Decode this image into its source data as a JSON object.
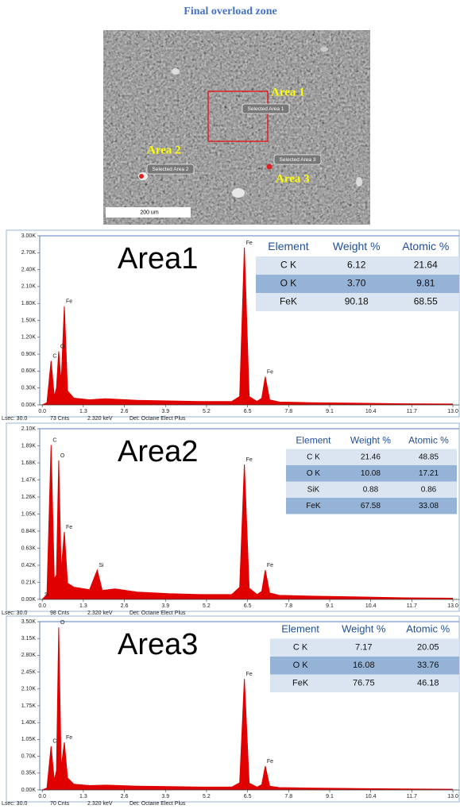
{
  "title": "Final overload zone",
  "image": {
    "area_labels": [
      "Area 1",
      "Area 2",
      "Area 3"
    ],
    "tags": [
      "Selected Area 1",
      "Selected Area 2",
      "Selected Area 3"
    ],
    "scale_bar": "200 um"
  },
  "chart_data": [
    {
      "type": "area",
      "title": "Area1",
      "color": "#e00000",
      "x": [
        0,
        0.15,
        0.28,
        0.38,
        0.45,
        0.52,
        0.6,
        0.7,
        0.8,
        1.0,
        1.5,
        2.0,
        3.0,
        4.0,
        5.0,
        6.0,
        6.25,
        6.4,
        6.55,
        6.8,
        6.95,
        7.06,
        7.2,
        7.5,
        8.5,
        10,
        11.5,
        13.0
      ],
      "values": [
        0,
        40,
        780,
        150,
        300,
        950,
        400,
        1750,
        250,
        120,
        90,
        110,
        80,
        70,
        60,
        60,
        150,
        2790,
        150,
        60,
        120,
        500,
        90,
        50,
        40,
        30,
        20,
        15
      ],
      "xlim": [
        -0.08,
        13.2
      ],
      "ylim": [
        0,
        3000
      ],
      "xticks": [
        {
          "value": 0,
          "label": "0.0"
        },
        1.3,
        2.6,
        3.9,
        5.2,
        6.5,
        7.8,
        9.1,
        10.4,
        11.7,
        {
          "value": 13,
          "label": "13.0"
        }
      ],
      "yticks": [
        {
          "value": 0,
          "label": "0.00K"
        },
        {
          "value": 300,
          "label": "0.30K"
        },
        {
          "value": 600,
          "label": "0.60K"
        },
        {
          "value": 900,
          "label": "0.90K"
        },
        {
          "value": 1200,
          "label": "1.20K"
        },
        {
          "value": 1500,
          "label": "1.50K"
        },
        {
          "value": 1800,
          "label": "1.80K"
        },
        {
          "value": 2100,
          "label": "2.10K"
        },
        {
          "value": 2400,
          "label": "2.40K"
        },
        {
          "value": 2700,
          "label": "2.70K"
        },
        {
          "value": 3000,
          "label": "3.00K"
        }
      ],
      "peaks": [
        {
          "label": "C",
          "x": 0.28
        },
        {
          "label": "O",
          "x": 0.52
        },
        {
          "label": "Fe",
          "x": 0.7
        },
        {
          "label": "Fe",
          "x": 6.4
        },
        {
          "label": "Fe",
          "x": 7.06
        }
      ],
      "table": {
        "columns": [
          "Element",
          "Weight %",
          "Atomic %"
        ],
        "rows": [
          [
            "C K",
            "6.12",
            "21.64"
          ],
          [
            "O K",
            "3.70",
            "9.81"
          ],
          [
            "FeK",
            "90.18",
            "68.55"
          ]
        ]
      },
      "footer": [
        "Lsec: 30.0",
        "73 Cnts",
        "2.320 keV",
        "Det: Octane Elect Plus"
      ]
    },
    {
      "type": "area",
      "title": "Area2",
      "color": "#e00000",
      "x": [
        0,
        0.15,
        0.28,
        0.38,
        0.45,
        0.52,
        0.6,
        0.7,
        0.8,
        1.0,
        1.5,
        1.74,
        1.9,
        2.3,
        3.0,
        4.0,
        5.0,
        6.0,
        6.25,
        6.4,
        6.55,
        6.8,
        6.95,
        7.06,
        7.2,
        7.5,
        8.5,
        10,
        11.5,
        13.0
      ],
      "values": [
        0,
        60,
        1900,
        250,
        300,
        1710,
        350,
        830,
        200,
        150,
        120,
        360,
        110,
        130,
        90,
        70,
        60,
        60,
        150,
        1660,
        140,
        60,
        100,
        360,
        80,
        50,
        40,
        30,
        20,
        15
      ],
      "xlim": [
        -0.08,
        13.2
      ],
      "ylim": [
        0,
        2100
      ],
      "xticks": [
        {
          "value": 0,
          "label": "0.0"
        },
        1.3,
        2.6,
        3.9,
        5.2,
        6.5,
        7.8,
        9.1,
        10.4,
        11.7,
        {
          "value": 13,
          "label": "13.0"
        }
      ],
      "yticks": [
        {
          "value": 0,
          "label": "0.00K"
        },
        {
          "value": 210,
          "label": "0.21K"
        },
        {
          "value": 420,
          "label": "0.42K"
        },
        {
          "value": 630,
          "label": "0.63K"
        },
        {
          "value": 840,
          "label": "0.84K"
        },
        {
          "value": 1050,
          "label": "1.05K"
        },
        {
          "value": 1260,
          "label": "1.26K"
        },
        {
          "value": 1470,
          "label": "1.47K"
        },
        {
          "value": 1680,
          "label": "1.68K"
        },
        {
          "value": 1890,
          "label": "1.89K"
        },
        {
          "value": 2100,
          "label": "2.10K"
        }
      ],
      "peaks": [
        {
          "label": "Si",
          "x": 0.02
        },
        {
          "label": "C",
          "x": 0.28
        },
        {
          "label": "O",
          "x": 0.52
        },
        {
          "label": "Fe",
          "x": 0.7
        },
        {
          "label": "Si",
          "x": 1.74
        },
        {
          "label": "Fe",
          "x": 6.4
        },
        {
          "label": "Fe",
          "x": 7.06
        }
      ],
      "table": {
        "columns": [
          "Element",
          "Weight %",
          "Atomic %"
        ],
        "rows": [
          [
            "C K",
            "21.46",
            "48.85"
          ],
          [
            "O K",
            "10.08",
            "17.21"
          ],
          [
            "SiK",
            "0.88",
            "0.86"
          ],
          [
            "FeK",
            "67.58",
            "33.08"
          ]
        ]
      },
      "footer": [
        "Lsec: 30.0",
        "98 Cnts",
        "2.320 keV",
        "Det: Octane Elect Plus"
      ]
    },
    {
      "type": "area",
      "title": "Area3",
      "color": "#e00000",
      "x": [
        0,
        0.15,
        0.28,
        0.38,
        0.45,
        0.52,
        0.6,
        0.7,
        0.8,
        1.0,
        1.5,
        2.0,
        3.0,
        4.0,
        5.0,
        6.0,
        6.25,
        6.4,
        6.55,
        6.8,
        6.95,
        7.06,
        7.2,
        7.5,
        8.5,
        10,
        11.5,
        13.0
      ],
      "values": [
        0,
        40,
        910,
        200,
        400,
        3380,
        450,
        990,
        250,
        120,
        90,
        100,
        80,
        70,
        60,
        60,
        150,
        2310,
        140,
        60,
        110,
        495,
        80,
        50,
        40,
        30,
        20,
        15
      ],
      "xlim": [
        -0.08,
        13.2
      ],
      "ylim": [
        0,
        3500
      ],
      "xticks": [
        {
          "value": 0,
          "label": "0.0"
        },
        1.3,
        2.6,
        3.9,
        5.2,
        6.5,
        7.8,
        9.1,
        10.4,
        11.7,
        {
          "value": 13,
          "label": "13.0"
        }
      ],
      "yticks": [
        {
          "value": 0,
          "label": "0.00K"
        },
        {
          "value": 350,
          "label": "0.35K"
        },
        {
          "value": 700,
          "label": "0.70K"
        },
        {
          "value": 1050,
          "label": "1.05K"
        },
        {
          "value": 1400,
          "label": "1.40K"
        },
        {
          "value": 1750,
          "label": "1.75K"
        },
        {
          "value": 2100,
          "label": "2.10K"
        },
        {
          "value": 2450,
          "label": "2.45K"
        },
        {
          "value": 2800,
          "label": "2.80K"
        },
        {
          "value": 3150,
          "label": "3.15K"
        },
        {
          "value": 3500,
          "label": "3.50K"
        }
      ],
      "peaks": [
        {
          "label": "C",
          "x": 0.28
        },
        {
          "label": "O",
          "x": 0.52
        },
        {
          "label": "Fe",
          "x": 0.7
        },
        {
          "label": "Fe",
          "x": 6.4
        },
        {
          "label": "Fe",
          "x": 7.06
        }
      ],
      "table": {
        "columns": [
          "Element",
          "Weight %",
          "Atomic %"
        ],
        "rows": [
          [
            "C K",
            "7.17",
            "20.05"
          ],
          [
            "O K",
            "16.08",
            "33.76"
          ],
          [
            "FeK",
            "76.75",
            "46.18"
          ]
        ]
      },
      "footer": [
        "Lsec: 30.0",
        "70 Cnts",
        "2.320 keV",
        "Det: Octane Elect Plus"
      ]
    }
  ]
}
